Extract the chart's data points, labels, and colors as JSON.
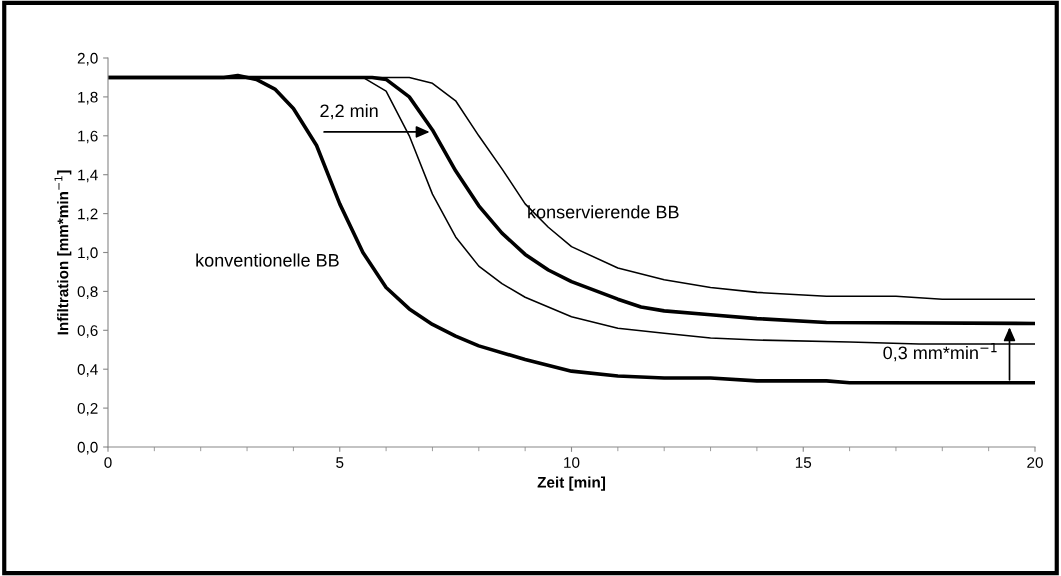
{
  "chart_data": {
    "type": "line",
    "xlabel": "Zeit [min]",
    "ylabel": "Infiltration [mm*min$^{−1}$]",
    "xlim": [
      0,
      20
    ],
    "xticks": [
      0,
      5,
      10,
      15,
      20
    ],
    "ylim": [
      0,
      2.0
    ],
    "yticks": [
      {
        "value": 0,
        "label": "0,0"
      },
      {
        "value": 0.2,
        "label": "0,2"
      },
      {
        "value": 0.4,
        "label": "0,4"
      },
      {
        "value": 0.6,
        "label": "0,6"
      },
      {
        "value": 0.8,
        "label": "0,8"
      },
      {
        "value": 1.0,
        "label": "1,0"
      },
      {
        "value": 1.2,
        "label": "1,2"
      },
      {
        "value": 1.4,
        "label": "1,4"
      },
      {
        "value": 1.6,
        "label": "1,6"
      },
      {
        "value": 1.8,
        "label": "1,8"
      },
      {
        "value": 2.0,
        "label": "2,0"
      }
    ],
    "grid": false,
    "legend": false,
    "marker": "none",
    "line_style": "solid",
    "series": [
      {
        "color": "#000000",
        "x": [
          0,
          2.5,
          2.8,
          3.2,
          3.6,
          4.0,
          4.5,
          5.0,
          5.5,
          6.0,
          6.5,
          7.0,
          7.5,
          8.0,
          9.0,
          10.0,
          11.0,
          12.0,
          13.0,
          14.0,
          15.5,
          16.0,
          20.0
        ],
        "values": [
          1.9,
          1.9,
          1.91,
          1.89,
          1.84,
          1.74,
          1.55,
          1.25,
          1.0,
          0.82,
          0.71,
          0.63,
          0.57,
          0.52,
          0.45,
          0.39,
          0.365,
          0.355,
          0.355,
          0.34,
          0.34,
          0.33,
          0.33
        ]
      },
      {
        "color": "#000000",
        "x": [
          0,
          5.5,
          6.0,
          6.5,
          7.0,
          7.5,
          8.0,
          8.5,
          9.0,
          10.0,
          11.0,
          12.0,
          13.0,
          14.0,
          16.0,
          17.5,
          20.0
        ],
        "values": [
          1.9,
          1.9,
          1.83,
          1.6,
          1.3,
          1.08,
          0.93,
          0.84,
          0.77,
          0.67,
          0.61,
          0.585,
          0.56,
          0.55,
          0.54,
          0.53,
          0.53
        ]
      },
      {
        "color": "#000000",
        "x": [
          0,
          5.7,
          6.0,
          6.5,
          7.0,
          7.5,
          8.0,
          8.5,
          9.0,
          9.5,
          10.0,
          11.0,
          11.5,
          12.0,
          13.0,
          14.0,
          15.5,
          20.0
        ],
        "values": [
          1.9,
          1.9,
          1.89,
          1.8,
          1.63,
          1.42,
          1.24,
          1.1,
          0.99,
          0.91,
          0.85,
          0.76,
          0.72,
          0.7,
          0.68,
          0.66,
          0.64,
          0.635
        ]
      },
      {
        "color": "#000000",
        "x": [
          0,
          6.5,
          7.0,
          7.5,
          8.0,
          8.5,
          9.0,
          9.5,
          10.0,
          11.0,
          12.0,
          13.0,
          14.0,
          15.5,
          17.0,
          18.0,
          20.0
        ],
        "values": [
          1.9,
          1.9,
          1.87,
          1.78,
          1.6,
          1.43,
          1.25,
          1.13,
          1.03,
          0.92,
          0.86,
          0.82,
          0.795,
          0.775,
          0.775,
          0.76,
          0.76
        ]
      }
    ],
    "annotations": [
      "konventionelle BB",
      "konservierende BB",
      {
        "text": "2,2 min",
        "x": 7.0,
        "y": 1.62
      },
      {
        "text": "0,3 mm*min$^{−1}$",
        "x": 19.45,
        "y": 0.63
      }
    ]
  }
}
